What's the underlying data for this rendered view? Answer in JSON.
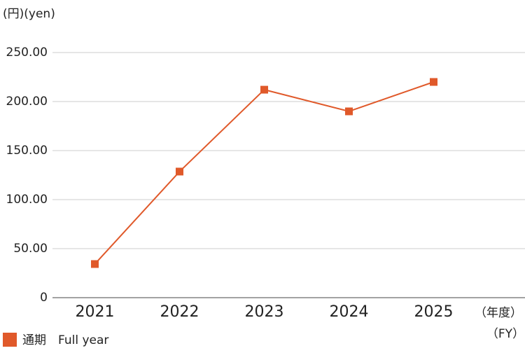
{
  "chart_data": {
    "type": "line",
    "y_axis_label": "(円)(yen)",
    "x_axis_label": [
      "（年度）",
      "（FY）"
    ],
    "categories": [
      "2021",
      "2022",
      "2023",
      "2024",
      "2025"
    ],
    "series": [
      {
        "name": "通期　Full year",
        "color": "#e0592a",
        "values": [
          34.3,
          128.6,
          212.1,
          190,
          220
        ]
      }
    ],
    "ylim": [
      0,
      250
    ],
    "yticks": [
      0,
      {
        "value": 50,
        "label": "50.00"
      },
      {
        "value": 100,
        "label": "100.00"
      },
      {
        "value": 150,
        "label": "150.00"
      },
      {
        "value": 200,
        "label": "200.00"
      },
      {
        "value": 250,
        "label": "250.00"
      }
    ],
    "grid": true
  }
}
